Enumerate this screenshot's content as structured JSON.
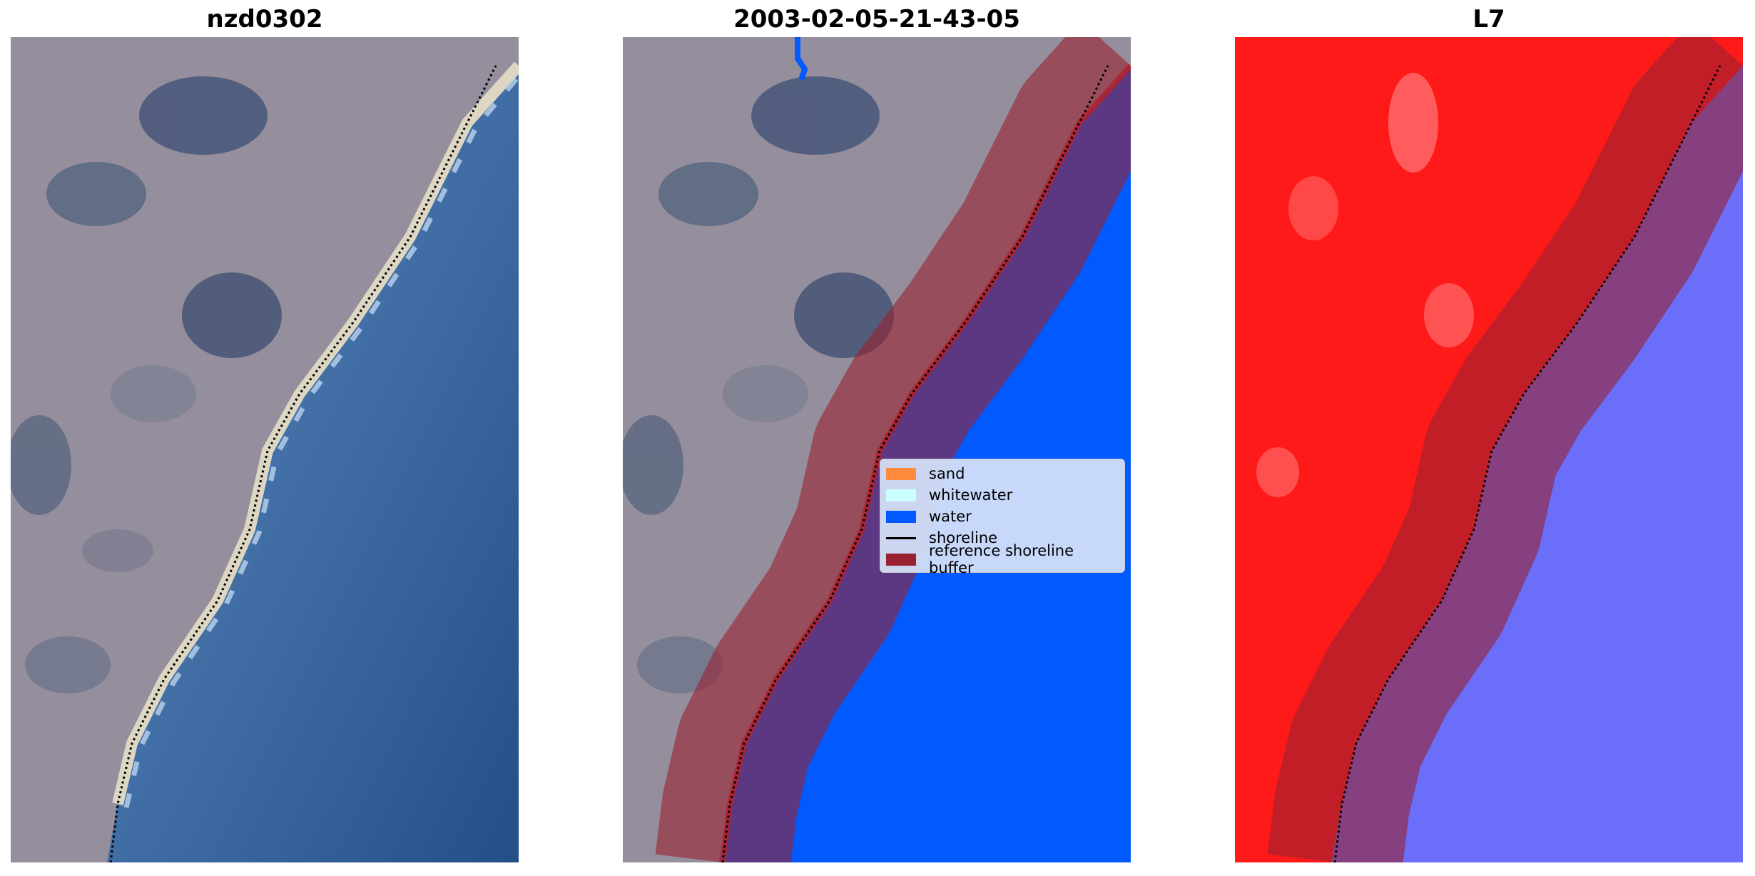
{
  "panels": [
    {
      "title": "nzd0302",
      "icon": "rgb-satellite-image"
    },
    {
      "title": "2003-02-05-21-43-05",
      "icon": "classified-satellite-image"
    },
    {
      "title": "L7",
      "icon": "mndwi-index-image"
    }
  ],
  "legend": {
    "items": [
      {
        "label": "sand",
        "color": "#ff8c3c"
      },
      {
        "label": "whitewater",
        "color": "#ccffff"
      },
      {
        "label": "water",
        "color": "#005aff"
      },
      {
        "label": "shoreline",
        "color": "#000000"
      },
      {
        "label": "reference shoreline buffer",
        "color": "#9a2230"
      }
    ]
  },
  "colors": {
    "land": "#8f8a98",
    "ocean": "#2f5e96",
    "beach": "#d8d2bf",
    "classified_water": "#005aff",
    "buffer": "#9a2230",
    "index_land": "#ff1a1a",
    "index_water": "#6a6ef8"
  }
}
